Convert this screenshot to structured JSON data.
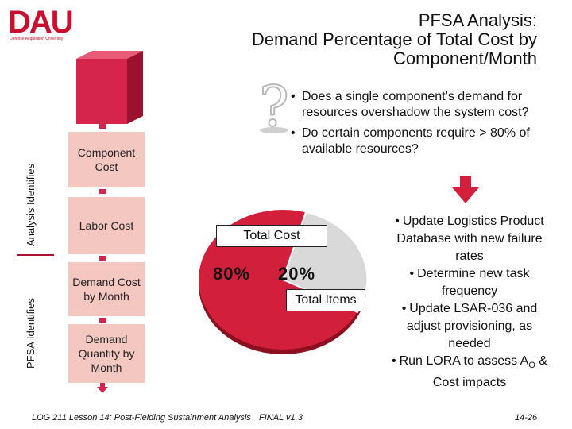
{
  "logo": {
    "text": "DAU",
    "subtext": "Defense Acquisition University"
  },
  "title": {
    "line1": "PFSA Analysis:",
    "line2": "Demand Percentage of Total Cost by",
    "line3": "Component/Month"
  },
  "side_labels": {
    "analysis": "Analysis Identifies",
    "pfsa": "PFSA Identifies"
  },
  "flow_boxes": [
    {
      "label": "Component Cost"
    },
    {
      "label": "Labor Cost"
    },
    {
      "label": "Demand Cost by Month"
    },
    {
      "label": "Demand Quantity by Month"
    }
  ],
  "questions": [
    "Does a single component’s demand for resources overshadow the system cost?",
    "Do certain components require > 80% of available resources?"
  ],
  "pie": {
    "total_cost_label": "Total Cost",
    "total_items_label": "Total Items",
    "pct_large": "80%",
    "pct_small": "20%",
    "colors": {
      "large": "#d21f3c",
      "small": "#d9d9d9",
      "edge": "#8c1020"
    }
  },
  "actions": [
    "Update Logistics Product Database with new failure rates",
    "Determine new task frequency",
    "Update LSAR-036 and adjust provisioning, as needed",
    "Run LORA to assess A",
    "& Cost impacts"
  ],
  "action_subscript": "O",
  "footer": {
    "left": "LOG 211 Lesson 14: Post-Fielding Sustainment Analysis",
    "center": "FINAL v1.3",
    "right": "14-26"
  },
  "colors": {
    "accent": "#c8102e",
    "box_fill": "#f4c8c0",
    "cube": "#d6254d"
  }
}
